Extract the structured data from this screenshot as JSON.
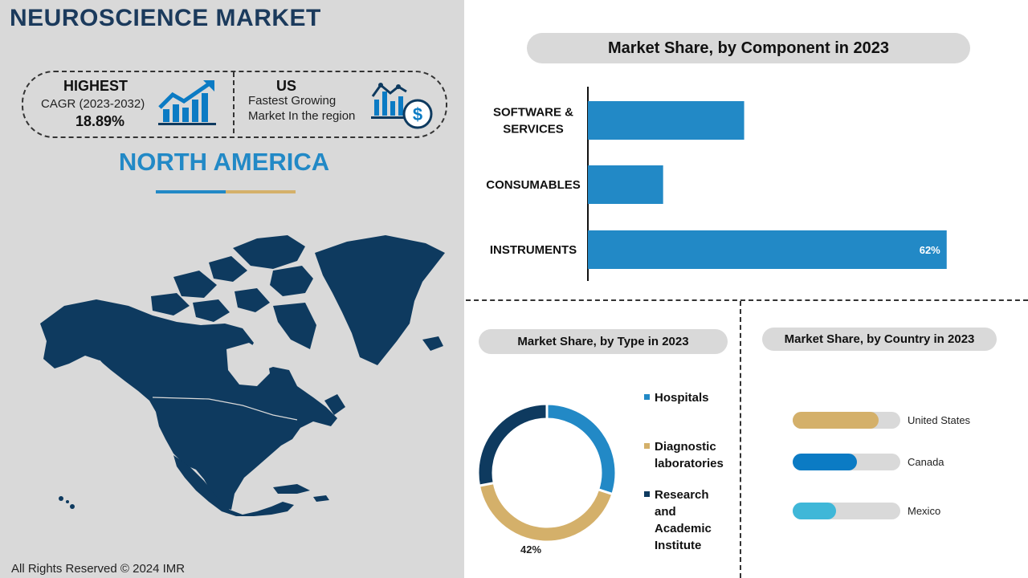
{
  "page": {
    "title": "NEUROSCIENCE MARKET",
    "highlight": {
      "heading": "HIGHEST",
      "metric": "CAGR (2023-2032)",
      "value": "18.89%"
    },
    "growing": {
      "heading": "US",
      "line1": "Fastest Growing",
      "line2": "Market In the region"
    },
    "region": "NORTH AMERICA",
    "copyright": "All Rights Reserved © 2024 IMR"
  },
  "colors": {
    "navy": "#0e3a5f",
    "blue": "#2289c6",
    "gold": "#d4b06a",
    "darkblue": "#0b7bc4",
    "lightblue": "#3fb7d8",
    "track": "#d9d9d9"
  },
  "icons": {
    "highlight": "growth-chart-icon",
    "growing": "dollar-chart-icon",
    "map": "north-america-map"
  },
  "chart_data": [
    {
      "type": "bar",
      "title": "Market Share, by Component in 2023",
      "orientation": "horizontal",
      "categories": [
        "SOFTWARE & SERVICES",
        "CONSUMABLES",
        "INSTRUMENTS"
      ],
      "category_lines": [
        [
          "SOFTWARE &",
          "SERVICES"
        ],
        [
          "CONSUMABLES"
        ],
        [
          "INSTRUMENTS"
        ]
      ],
      "values": [
        27,
        13,
        62
      ],
      "data_labels": [
        "",
        "",
        "62%"
      ],
      "xlim": [
        0,
        68
      ],
      "color": "#2289c6"
    },
    {
      "type": "pie",
      "donut": true,
      "title": "Market Share, by Type in 2023",
      "categories": [
        "Hospitals",
        "Diagnostic laboratories",
        "Research and Academic Institute"
      ],
      "legend_lines": [
        [
          "Hospitals"
        ],
        [
          "Diagnostic",
          "laboratories"
        ],
        [
          "Research and",
          "Academic",
          "Institute"
        ]
      ],
      "values": [
        30,
        42,
        28
      ],
      "colors": [
        "#2289c6",
        "#d4b06a",
        "#0e3a5f"
      ],
      "data_labels": [
        "",
        "42%",
        ""
      ]
    },
    {
      "type": "bar",
      "title": "Market Share, by Country in 2023",
      "categories": [
        "United States",
        "Canada",
        "Mexico"
      ],
      "values": [
        80,
        60,
        40
      ],
      "max": 100,
      "colors": [
        "#d4b06a",
        "#0b7bc4",
        "#3fb7d8"
      ]
    }
  ]
}
